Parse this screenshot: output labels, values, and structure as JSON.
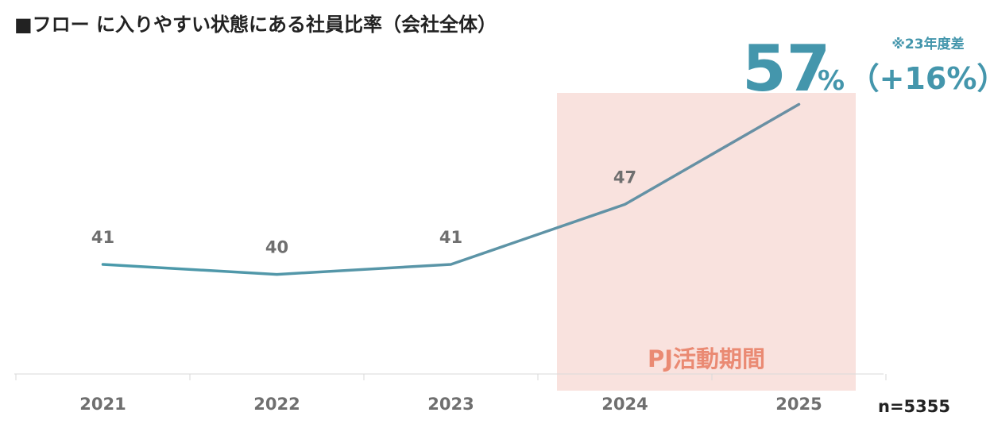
{
  "chart_data": {
    "type": "line",
    "title": "■フロー に入りやすい状態にある社員比率（会社全体）",
    "categories": [
      "2021",
      "2022",
      "2023",
      "2024",
      "2025"
    ],
    "series": [
      {
        "values": [
          41,
          40,
          41,
          47,
          57
        ]
      }
    ],
    "ylim": [
      30,
      60
    ],
    "grid": false,
    "highlight": {
      "label": "PJ活動期間",
      "from": "2024",
      "to": "2025"
    },
    "callout": {
      "value": "57",
      "unit": "%",
      "delta": "（+16%）",
      "note": "※23年度差"
    },
    "sample_size": "n=5355"
  },
  "colors": {
    "line": "#4a9aab",
    "line_end": "#6b8fa3",
    "highlight_fill": "#f9e2de",
    "highlight_text": "#ea8a73",
    "callout": "#4496ac",
    "axis": "#d9d9d9"
  }
}
